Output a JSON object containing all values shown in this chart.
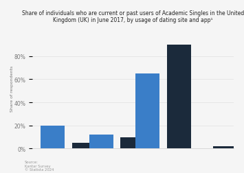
{
  "title": "Share of individuals who are current or past users of Academic Singles in the United\nKingdom (UK) in June 2017, by usage of dating site and app¹",
  "ylabel": "Share of respondents",
  "ylim": [
    0,
    1.05
  ],
  "yticks": [
    0.0,
    0.2,
    0.4,
    0.6,
    0.8
  ],
  "ytick_labels": [
    "0%",
    "20%",
    "40%",
    "60%",
    "80%"
  ],
  "blue_values": [
    0.2,
    0.12,
    0.65,
    0.0
  ],
  "dark_values": [
    0.05,
    0.1,
    0.9,
    0.02
  ],
  "blue_color": "#3a7ec8",
  "dark_color": "#1b2a3b",
  "bar_width": 0.12,
  "source_text": "Source:\nKantar Survey\n© Statista 2024",
  "background_color": "#f5f5f5",
  "grid_color": "#e0e0e0"
}
